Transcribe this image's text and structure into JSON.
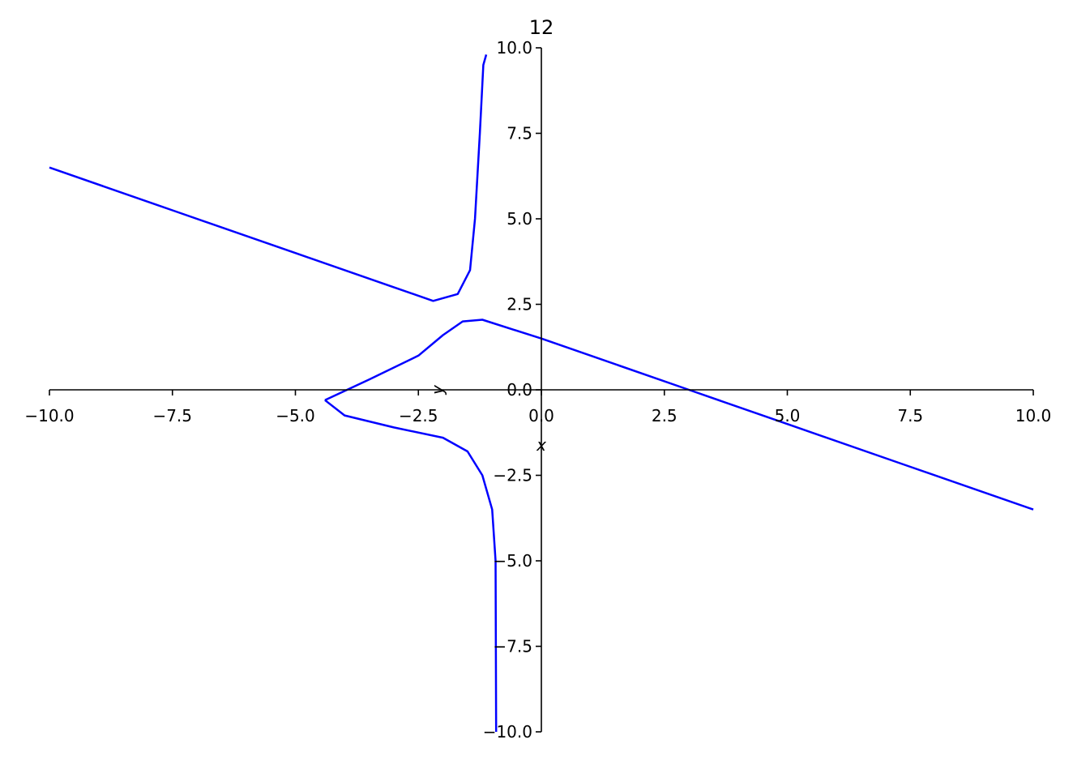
{
  "chart_data": {
    "type": "line",
    "title": "12",
    "x_label": "x",
    "y_label": "y",
    "xlim": [
      -10,
      10
    ],
    "ylim": [
      -10,
      10
    ],
    "xticks": [
      {
        "value": -10,
        "label": "−10.0"
      },
      {
        "value": -7.5,
        "label": "−7.5"
      },
      {
        "value": -5,
        "label": "−5.0"
      },
      {
        "value": -2.5,
        "label": "−2.5"
      },
      {
        "value": 0,
        "label": "0.0"
      },
      2.5,
      {
        "value": 5,
        "label": "5.0"
      },
      7.5,
      {
        "value": 10,
        "label": "10.0"
      }
    ],
    "yticks": [
      {
        "value": -10,
        "label": "−10.0"
      },
      {
        "value": -7.5,
        "label": "−7.5"
      },
      {
        "value": -5,
        "label": "−5.0"
      },
      {
        "value": -2.5,
        "label": "−2.5"
      },
      {
        "value": 0,
        "label": "0.0"
      },
      2.5,
      {
        "value": 5,
        "label": "5.0"
      },
      7.5,
      {
        "value": 10,
        "label": "10.0"
      }
    ],
    "series": [
      {
        "color": "#0000ff",
        "x": [
          -10,
          -7.5,
          -5,
          -3,
          -2.2,
          -1.7,
          -1.45,
          -1.35,
          -1.25,
          -1.18,
          -1.12
        ],
        "values": [
          6.5,
          5.25,
          4,
          3.0,
          2.6,
          2.8,
          3.5,
          5,
          7.5,
          9.5,
          9.8
        ]
      },
      {
        "color": "#0000ff",
        "x": [
          -4.4,
          -3.5,
          -2.5,
          -2,
          -1.6,
          -1.2,
          0,
          3,
          5,
          7.5,
          10
        ],
        "values": [
          -0.3,
          0.3,
          1.0,
          1.6,
          2.0,
          2.05,
          1.5,
          0,
          -1,
          -2.25,
          -3.5
        ]
      },
      {
        "color": "#0000ff",
        "x": [
          -4.4,
          -4,
          -3,
          -2,
          -1.5,
          -1.2,
          -1.0,
          -0.93,
          -0.92
        ],
        "values": [
          -0.3,
          -0.75,
          -1.1,
          -1.4,
          -1.8,
          -2.5,
          -3.5,
          -5,
          -10
        ]
      }
    ]
  }
}
